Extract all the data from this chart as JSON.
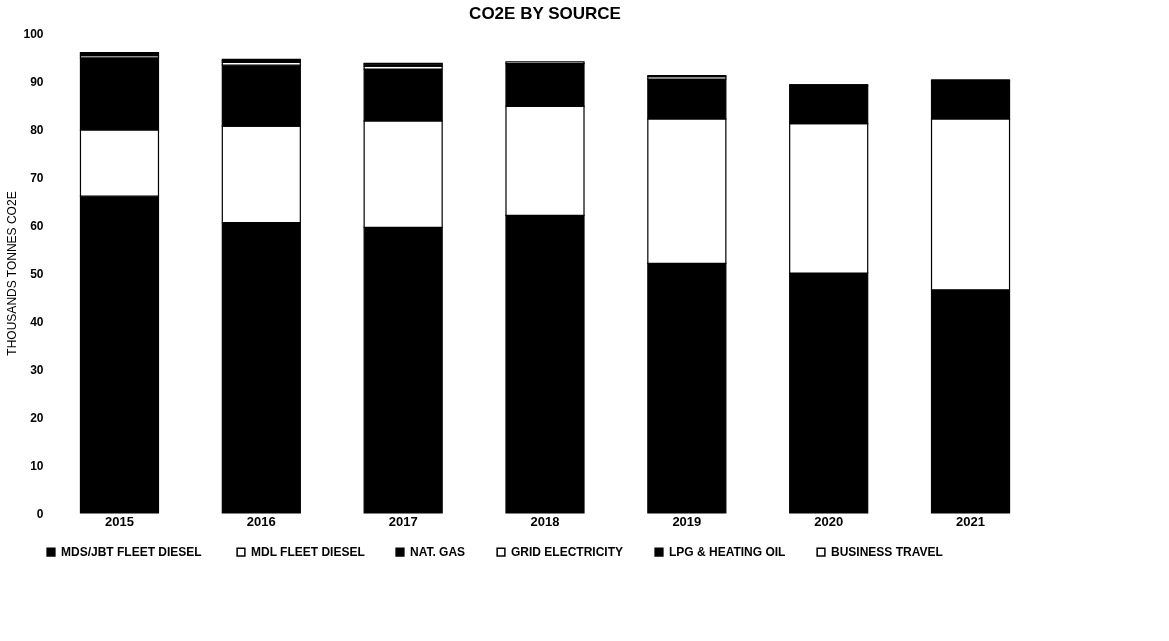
{
  "chart_data": {
    "type": "bar",
    "stacked": true,
    "title": "CO2E BY SOURCE",
    "ylabel": "THOUSANDS TONNES CO2E",
    "categories": [
      "2015",
      "2016",
      "2017",
      "2018",
      "2019",
      "2020",
      "2021"
    ],
    "series": [
      {
        "name": "MDS/JBT  FLEET DIESEL",
        "color": "#000000",
        "values": [
          66,
          60.5,
          59.5,
          62,
          52,
          50,
          46.5
        ]
      },
      {
        "name": "MDL FLEET DIESEL",
        "color": "#ffffff",
        "values": [
          13.8,
          20.1,
          22.2,
          22.7,
          30.1,
          31.1,
          35.6
        ]
      },
      {
        "name": "NAT. GAS",
        "color": "#000000",
        "values": [
          15.0,
          12.7,
          10.8,
          8.9,
          8.3,
          7.9,
          7.9
        ]
      },
      {
        "name": "GRID ELECTRICITY",
        "color": "#ffffff",
        "values": [
          0.5,
          0.6,
          0.6,
          0.4,
          0.5,
          0,
          0
        ]
      },
      {
        "name": "LPG & HEATING OIL",
        "color": "#000000",
        "values": [
          0.4,
          0.4,
          0.4,
          null,
          null,
          0.2,
          0.2
        ]
      },
      {
        "name": "BUSINESS TRAVEL",
        "color": "#ffffff",
        "values": [
          0.2,
          0.2,
          0.2,
          null,
          0.2,
          0,
          0
        ]
      }
    ],
    "ylim": [
      0,
      100
    ],
    "yticks": [
      0,
      10,
      20,
      30,
      40,
      50,
      60,
      70,
      80,
      90,
      100
    ],
    "grid": false,
    "legend": "bottom"
  }
}
